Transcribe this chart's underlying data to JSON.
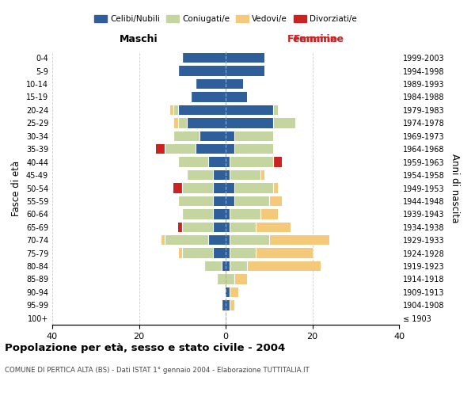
{
  "age_groups": [
    "100+",
    "95-99",
    "90-94",
    "85-89",
    "80-84",
    "75-79",
    "70-74",
    "65-69",
    "60-64",
    "55-59",
    "50-54",
    "45-49",
    "40-44",
    "35-39",
    "30-34",
    "25-29",
    "20-24",
    "15-19",
    "10-14",
    "5-9",
    "0-4"
  ],
  "birth_years": [
    "≤ 1903",
    "1904-1908",
    "1909-1913",
    "1914-1918",
    "1919-1923",
    "1924-1928",
    "1929-1933",
    "1934-1938",
    "1939-1943",
    "1944-1948",
    "1949-1953",
    "1954-1958",
    "1959-1963",
    "1964-1968",
    "1969-1973",
    "1974-1978",
    "1979-1983",
    "1984-1988",
    "1989-1993",
    "1994-1998",
    "1999-2003"
  ],
  "male": {
    "celibi": [
      0,
      1,
      0,
      0,
      1,
      3,
      4,
      3,
      3,
      3,
      3,
      3,
      4,
      7,
      6,
      9,
      11,
      8,
      7,
      11,
      10
    ],
    "coniugati": [
      0,
      0,
      0,
      2,
      4,
      7,
      10,
      7,
      7,
      8,
      7,
      6,
      7,
      7,
      6,
      2,
      1,
      0,
      0,
      0,
      0
    ],
    "vedovi": [
      0,
      0,
      0,
      0,
      0,
      1,
      1,
      0,
      0,
      0,
      0,
      0,
      0,
      0,
      0,
      1,
      1,
      0,
      0,
      0,
      0
    ],
    "divorziati": [
      0,
      0,
      0,
      0,
      0,
      0,
      0,
      1,
      0,
      0,
      2,
      0,
      0,
      2,
      0,
      0,
      0,
      0,
      0,
      0,
      0
    ]
  },
  "female": {
    "nubili": [
      0,
      1,
      1,
      0,
      1,
      1,
      1,
      1,
      1,
      2,
      2,
      1,
      1,
      2,
      2,
      11,
      11,
      5,
      4,
      9,
      9
    ],
    "coniugate": [
      0,
      0,
      0,
      2,
      4,
      6,
      9,
      6,
      7,
      8,
      9,
      7,
      10,
      9,
      9,
      5,
      1,
      0,
      0,
      0,
      0
    ],
    "vedove": [
      0,
      1,
      2,
      3,
      17,
      13,
      14,
      8,
      4,
      3,
      1,
      1,
      0,
      0,
      0,
      0,
      0,
      0,
      0,
      0,
      0
    ],
    "divorziate": [
      0,
      0,
      0,
      0,
      0,
      0,
      0,
      0,
      0,
      0,
      0,
      0,
      2,
      0,
      0,
      0,
      0,
      0,
      0,
      0,
      0
    ]
  },
  "colors": {
    "celibi_nubili": "#2E5F9A",
    "coniugati": "#C5D5A0",
    "vedovi": "#F5C97A",
    "divorziati": "#CC2222"
  },
  "xlim": 40,
  "title": "Popolazione per età, sesso e stato civile - 2004",
  "subtitle": "COMUNE DI PERTICA ALTA (BS) - Dati ISTAT 1° gennaio 2004 - Elaborazione TUTTITALIA.IT",
  "xlabel_left": "Maschi",
  "xlabel_right": "Femmine",
  "ylabel_left": "Fasce di età",
  "ylabel_right": "Anni di nascita",
  "legend_labels": [
    "Celibi/Nubili",
    "Coniugati/e",
    "Vedovi/e",
    "Divorziati/e"
  ],
  "background_color": "#ffffff",
  "grid_color": "#cccccc"
}
